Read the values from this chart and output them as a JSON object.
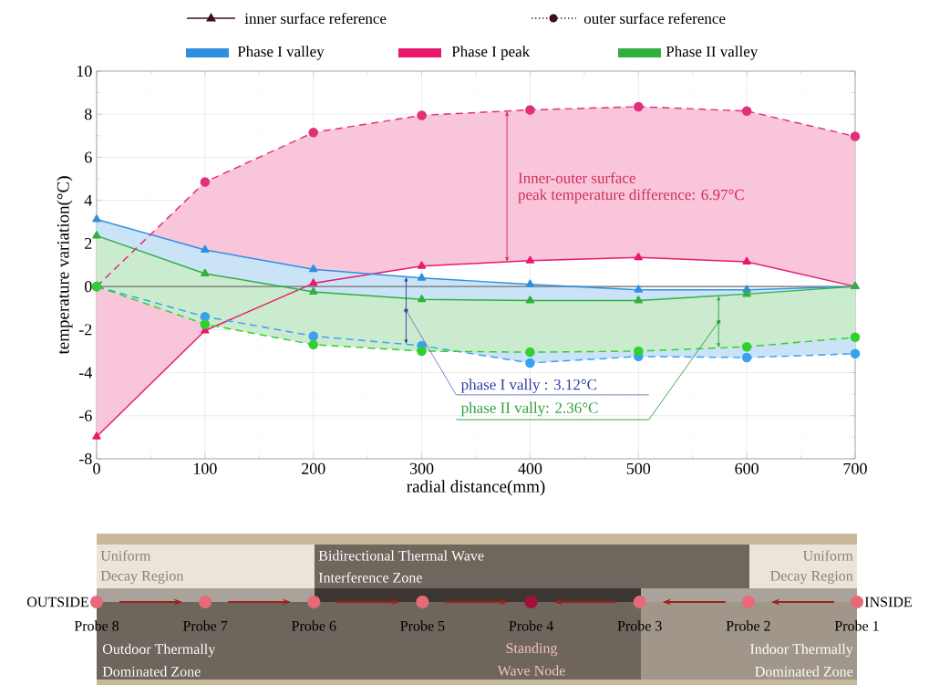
{
  "chart_data": {
    "type": "line",
    "x": [
      0,
      100,
      200,
      300,
      400,
      500,
      600,
      700
    ],
    "xlim": [
      0,
      700
    ],
    "xticks": [
      0,
      100,
      200,
      300,
      400,
      500,
      600,
      700
    ],
    "ylim": [
      -8,
      10
    ],
    "yticks": [
      -8,
      -6,
      -4,
      -2,
      0,
      2,
      4,
      6,
      8,
      10
    ],
    "xlabel": "radial distance(mm)",
    "ylabel": "temperature variation(°C)",
    "grid": true,
    "legend": "top",
    "ref_lines": [
      {
        "axis": "y",
        "value": 0,
        "color": "#707070"
      }
    ],
    "series": [
      {
        "name": "Phase I peak",
        "color": "#e8196e",
        "marker": "triangle",
        "line_style": "solid",
        "values": [
          -6.97,
          -2.05,
          0.15,
          0.95,
          1.2,
          1.35,
          1.15,
          0
        ],
        "lower": [
          -6.97,
          -2.05,
          0.15,
          0.95,
          1.2,
          1.35,
          1.15,
          0
        ],
        "upper": [
          0,
          4.85,
          7.15,
          7.95,
          8.2,
          8.35,
          8.15,
          6.97
        ]
      },
      {
        "name": "Phase I valley",
        "color": "#2e8fe0",
        "marker": "triangle",
        "line_style": "solid",
        "values": [
          3.12,
          1.7,
          0.8,
          0.4,
          0.1,
          -0.15,
          -0.15,
          0
        ],
        "lower": [
          0,
          -1.4,
          -2.3,
          -2.75,
          -3.55,
          -3.25,
          -3.3,
          -3.12
        ],
        "upper": [
          3.12,
          1.7,
          0.8,
          0.4,
          0.1,
          -0.15,
          -0.15,
          0
        ]
      },
      {
        "name": "Phase II valley",
        "color": "#30b040",
        "marker": "triangle",
        "line_style": "solid",
        "values": [
          2.36,
          0.6,
          -0.25,
          -0.6,
          -0.65,
          -0.65,
          -0.35,
          0
        ],
        "lower": [
          0,
          -1.75,
          -2.7,
          -3.0,
          -3.05,
          -3.0,
          -2.8,
          -2.36
        ],
        "upper": [
          2.36,
          0.6,
          -0.25,
          -0.6,
          -0.65,
          -0.65,
          -0.35,
          0
        ]
      },
      {
        "color": "#e0307a",
        "marker": "circle",
        "line_style": "dashed",
        "values": [
          0,
          4.85,
          7.15,
          7.95,
          8.2,
          8.35,
          8.15,
          6.97
        ]
      },
      {
        "color": "#3aa0f0",
        "marker": "circle",
        "line_style": "dashed",
        "values": [
          0,
          -1.4,
          -2.3,
          -2.75,
          -3.55,
          -3.25,
          -3.3,
          -3.12
        ]
      },
      {
        "color": "#30d030",
        "marker": "circle",
        "line_style": "dashed",
        "values": [
          0,
          -1.75,
          -2.7,
          -3.0,
          -3.05,
          -3.0,
          -2.8,
          -2.36
        ]
      }
    ],
    "annotations": [
      "inner surface reference",
      "outer surface reference",
      "Inner-outer surface",
      "peak temperature difference: 6.97°C",
      "phase I vally : 3.12°C",
      "phase II vally: 2.36°C",
      "OUTSIDE",
      "INSIDE",
      "Probe 8",
      "Probe 7",
      "Probe 6",
      "Probe 5",
      "Probe 4",
      "Probe 3",
      "Probe 2",
      "Probe 1",
      "Uniform",
      "Decay Region",
      "Uniform",
      "Decay Region",
      "Bidirectional Thermal Wave",
      "Interference Zone",
      "Outdoor Thermally",
      "Dominated Zone",
      "Standing",
      "Wave Node",
      "Indoor Thermally",
      "Dominated Zone"
    ]
  }
}
